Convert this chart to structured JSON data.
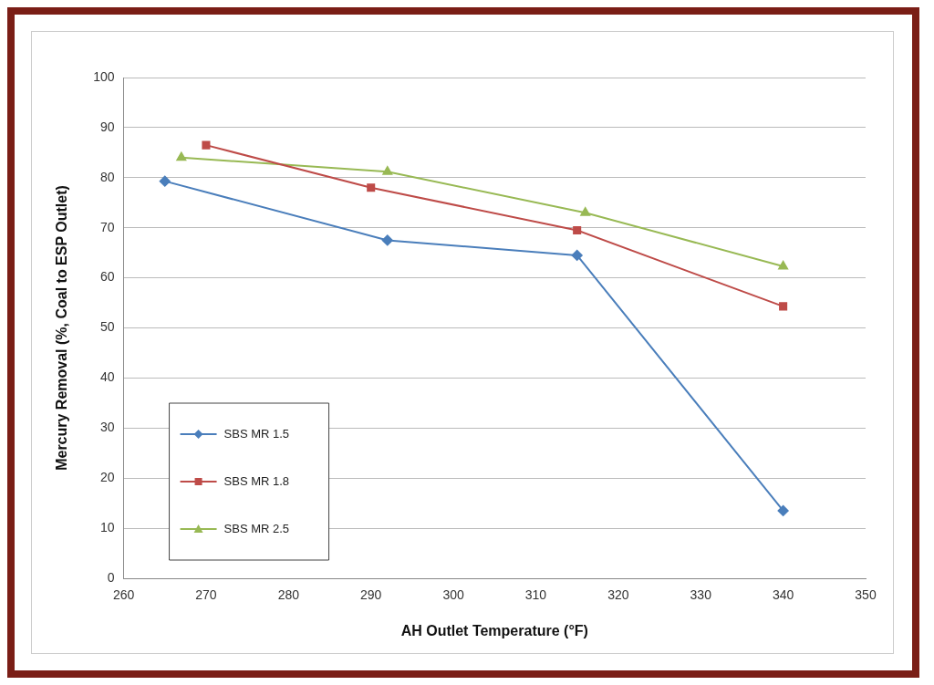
{
  "chart_data": {
    "type": "line",
    "xlabel": "AH Outlet Temperature (°F)",
    "ylabel": "Mercury Removal (%, Coal to ESP Outlet)",
    "xlim": [
      260,
      350
    ],
    "xticks": [
      260,
      270,
      280,
      290,
      300,
      310,
      320,
      330,
      340,
      350
    ],
    "ylim": [
      0,
      100
    ],
    "yticks": [
      0,
      10,
      20,
      30,
      40,
      50,
      60,
      70,
      80,
      90,
      100
    ],
    "grid": "y",
    "legend": "bottom left",
    "line_style": "solid",
    "series": [
      {
        "name": "SBS MR 1.5",
        "color": "#4a7ebb",
        "marker": "diamond",
        "x": [
          265,
          292,
          315,
          340
        ],
        "values": [
          79.3,
          67.5,
          64.5,
          13.5
        ]
      },
      {
        "name": "SBS MR 1.8",
        "color": "#be4b48",
        "marker": "square",
        "x": [
          270,
          290,
          315,
          340
        ],
        "values": [
          86.5,
          78,
          69.5,
          54.3
        ]
      },
      {
        "name": "SBS MR 2.5",
        "color": "#98b954",
        "marker": "triangle",
        "x": [
          267,
          292,
          316,
          340
        ],
        "values": [
          84,
          81.2,
          73,
          62.3
        ]
      }
    ]
  }
}
